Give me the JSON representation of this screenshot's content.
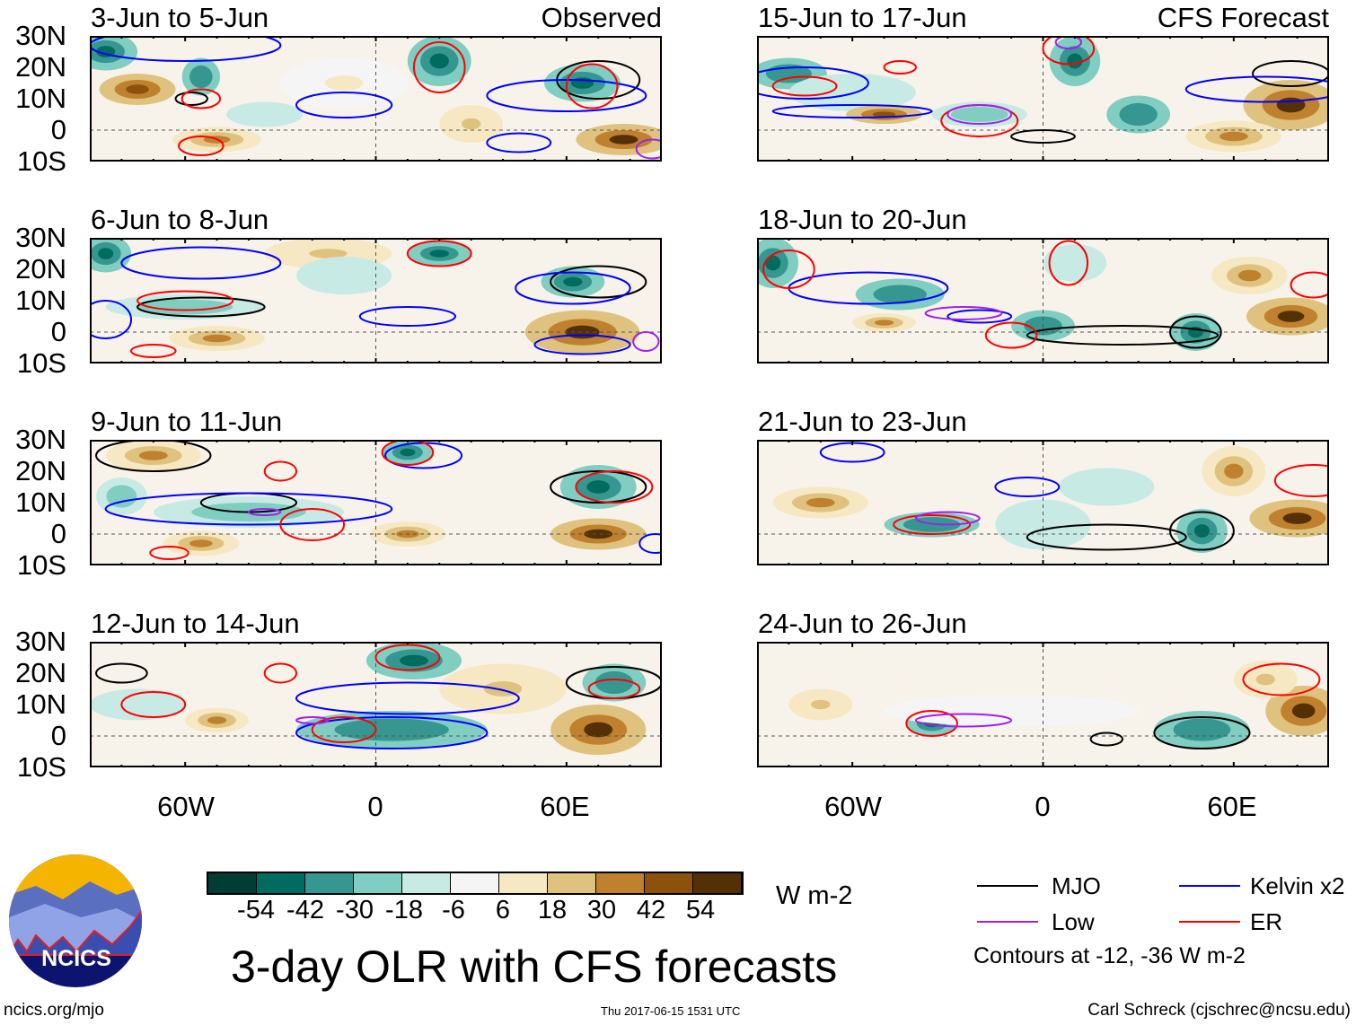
{
  "title": "3-day OLR with CFS forecasts",
  "units": "W m-2",
  "site": "ncics.org/mjo",
  "timestamp": "Thu 2017-06-15 1531 UTC",
  "author": "Carl Schreck (cjschrec@ncsu.edu)",
  "logo_text": "NCICS",
  "column_labels": {
    "observed": "Observed",
    "forecast": "CFS Forecast"
  },
  "lat_labels": [
    "30N",
    "20N",
    "10N",
    "0",
    "10S"
  ],
  "lon_labels": [
    "60W",
    "0",
    "60E"
  ],
  "colorbar": {
    "labels": [
      "-54",
      "-42",
      "-30",
      "-18",
      "-6",
      "6",
      "18",
      "30",
      "42",
      "54"
    ],
    "colors": [
      "#003d32",
      "#006b5f",
      "#35978f",
      "#80cdc1",
      "#c7eae5",
      "#f5f5f5",
      "#f6e8c3",
      "#dfc27d",
      "#bf812d",
      "#8c510a",
      "#543005"
    ]
  },
  "legend": {
    "items": [
      {
        "label": "MJO",
        "color": "#000000"
      },
      {
        "label": "Kelvin x2",
        "color": "#0000ff"
      },
      {
        "label": "Low",
        "color": "#a020f0"
      },
      {
        "label": "ER",
        "color": "#ff0000"
      }
    ],
    "note": "Contours at -12, -36 W m-2"
  },
  "panels": [
    {
      "title": "3-Jun to 5-Jun",
      "tag": "observed",
      "blobs": [
        [
          -85,
          25,
          10,
          6,
          -54
        ],
        [
          -75,
          13,
          12,
          5,
          42
        ],
        [
          -55,
          17,
          6,
          6,
          -42
        ],
        [
          -35,
          5,
          12,
          4,
          -18
        ],
        [
          20,
          22,
          10,
          8,
          -54
        ],
        [
          65,
          15,
          12,
          6,
          -54
        ],
        [
          78,
          -3,
          15,
          5,
          54
        ],
        [
          -50,
          -3,
          14,
          4,
          30
        ],
        [
          30,
          2,
          10,
          6,
          18
        ],
        [
          -10,
          15,
          20,
          8,
          6
        ]
      ],
      "contours": [
        [
          "MJO",
          -58,
          10,
          5,
          2
        ],
        [
          "MJO",
          70,
          16,
          13,
          6
        ],
        [
          "Kelvin",
          -60,
          27,
          30,
          5
        ],
        [
          "Kelvin",
          -10,
          8,
          15,
          4
        ],
        [
          "Kelvin",
          60,
          11,
          25,
          5
        ],
        [
          "Kelvin",
          45,
          -4,
          10,
          3
        ],
        [
          "ER",
          -55,
          10,
          6,
          3
        ],
        [
          "ER",
          20,
          20,
          8,
          8
        ],
        [
          "ER",
          68,
          14,
          8,
          7
        ],
        [
          "ER",
          -55,
          -5,
          7,
          3
        ],
        [
          "Low",
          87,
          -6,
          5,
          3
        ]
      ]
    },
    {
      "title": "15-Jun to 17-Jun",
      "tag": "forecast",
      "blobs": [
        [
          -80,
          18,
          12,
          5,
          -42
        ],
        [
          -60,
          12,
          20,
          6,
          -18
        ],
        [
          -20,
          5,
          15,
          4,
          -30
        ],
        [
          10,
          22,
          8,
          8,
          -54
        ],
        [
          30,
          5,
          10,
          6,
          -42
        ],
        [
          78,
          8,
          15,
          8,
          54
        ],
        [
          -50,
          5,
          12,
          3,
          42
        ],
        [
          60,
          -2,
          15,
          5,
          30
        ]
      ],
      "contours": [
        [
          "MJO",
          0,
          -2,
          10,
          2
        ],
        [
          "MJO",
          78,
          18,
          12,
          4
        ],
        [
          "Kelvin",
          -75,
          15,
          20,
          5
        ],
        [
          "Kelvin",
          70,
          13,
          25,
          4
        ],
        [
          "Kelvin",
          -60,
          6,
          25,
          2
        ],
        [
          "ER",
          -75,
          14,
          10,
          3
        ],
        [
          "ER",
          -20,
          3,
          12,
          5
        ],
        [
          "ER",
          8,
          26,
          8,
          5
        ],
        [
          "ER",
          -45,
          20,
          5,
          2
        ],
        [
          "Low",
          -20,
          5,
          10,
          3
        ],
        [
          "Low",
          8,
          28,
          4,
          2
        ]
      ]
    },
    {
      "title": "6-Jun to 8-Jun",
      "tag": "observed",
      "blobs": [
        [
          -85,
          25,
          8,
          6,
          -54
        ],
        [
          -60,
          8,
          25,
          4,
          -30
        ],
        [
          20,
          25,
          10,
          4,
          -54
        ],
        [
          62,
          16,
          10,
          5,
          -54
        ],
        [
          65,
          0,
          18,
          7,
          54
        ],
        [
          -15,
          25,
          20,
          5,
          18
        ],
        [
          -50,
          -2,
          15,
          4,
          30
        ],
        [
          -10,
          18,
          15,
          6,
          -18
        ]
      ],
      "contours": [
        [
          "MJO",
          -55,
          8,
          20,
          3
        ],
        [
          "MJO",
          70,
          16,
          15,
          5
        ],
        [
          "Kelvin",
          -55,
          22,
          25,
          5
        ],
        [
          "Kelvin",
          10,
          5,
          15,
          3
        ],
        [
          "Kelvin",
          65,
          -4,
          15,
          3
        ],
        [
          "Kelvin",
          62,
          14,
          18,
          5
        ],
        [
          "Kelvin",
          -85,
          4,
          8,
          6
        ],
        [
          "ER",
          -60,
          10,
          15,
          3
        ],
        [
          "ER",
          20,
          25,
          10,
          4
        ],
        [
          "ER",
          -70,
          -6,
          7,
          2
        ],
        [
          "Low",
          85,
          -3,
          4,
          3
        ]
      ]
    },
    {
      "title": "18-Jun to 20-Jun",
      "tag": "forecast",
      "blobs": [
        [
          -85,
          22,
          8,
          8,
          -54
        ],
        [
          -45,
          12,
          14,
          5,
          -42
        ],
        [
          0,
          2,
          10,
          5,
          -42
        ],
        [
          48,
          0,
          8,
          6,
          -54
        ],
        [
          78,
          5,
          14,
          6,
          54
        ],
        [
          65,
          18,
          12,
          6,
          30
        ],
        [
          -50,
          3,
          10,
          3,
          30
        ],
        [
          10,
          22,
          10,
          6,
          -18
        ]
      ],
      "contours": [
        [
          "MJO",
          25,
          -1,
          30,
          3
        ],
        [
          "MJO",
          48,
          0,
          8,
          5
        ],
        [
          "Kelvin",
          -55,
          14,
          25,
          5
        ],
        [
          "Kelvin",
          -20,
          5,
          10,
          2
        ],
        [
          "ER",
          -80,
          20,
          8,
          6
        ],
        [
          "ER",
          -10,
          -1,
          8,
          4
        ],
        [
          "ER",
          8,
          22,
          6,
          7
        ],
        [
          "ER",
          85,
          15,
          7,
          4
        ],
        [
          "Low",
          -25,
          6,
          12,
          2
        ]
      ]
    },
    {
      "title": "9-Jun to 11-Jun",
      "tag": "observed",
      "blobs": [
        [
          -70,
          25,
          15,
          5,
          30
        ],
        [
          -40,
          7,
          30,
          5,
          -30
        ],
        [
          10,
          26,
          8,
          4,
          -54
        ],
        [
          70,
          15,
          12,
          7,
          -54
        ],
        [
          70,
          0,
          15,
          5,
          54
        ],
        [
          10,
          0,
          12,
          4,
          30
        ],
        [
          -55,
          -3,
          12,
          4,
          30
        ],
        [
          -80,
          12,
          8,
          6,
          -30
        ]
      ],
      "contours": [
        [
          "MJO",
          -70,
          25,
          18,
          5
        ],
        [
          "MJO",
          -40,
          10,
          15,
          3
        ],
        [
          "MJO",
          70,
          15,
          15,
          5
        ],
        [
          "Kelvin",
          -40,
          8,
          45,
          5
        ],
        [
          "Kelvin",
          15,
          25,
          12,
          4
        ],
        [
          "Kelvin",
          88,
          -3,
          5,
          3
        ],
        [
          "ER",
          -20,
          3,
          10,
          5
        ],
        [
          "ER",
          10,
          26,
          8,
          4
        ],
        [
          "ER",
          -30,
          20,
          5,
          3
        ],
        [
          "ER",
          -65,
          -6,
          6,
          2
        ],
        [
          "ER",
          75,
          15,
          12,
          5
        ],
        [
          "Low",
          -35,
          7,
          5,
          1
        ]
      ]
    },
    {
      "title": "21-Jun to 23-Jun",
      "tag": "forecast",
      "blobs": [
        [
          -35,
          3,
          15,
          4,
          -42
        ],
        [
          0,
          3,
          15,
          8,
          -18
        ],
        [
          50,
          1,
          8,
          7,
          -54
        ],
        [
          80,
          5,
          15,
          6,
          54
        ],
        [
          60,
          20,
          10,
          8,
          30
        ],
        [
          -70,
          10,
          15,
          5,
          30
        ],
        [
          20,
          15,
          15,
          6,
          -18
        ]
      ],
      "contours": [
        [
          "MJO",
          20,
          -1,
          25,
          4
        ],
        [
          "MJO",
          50,
          1,
          10,
          6
        ],
        [
          "Kelvin",
          -60,
          26,
          10,
          3
        ],
        [
          "Kelvin",
          -5,
          15,
          10,
          3
        ],
        [
          "ER",
          -35,
          3,
          12,
          3
        ],
        [
          "ER",
          85,
          17,
          12,
          5
        ],
        [
          "Low",
          -30,
          5,
          10,
          2
        ]
      ]
    },
    {
      "title": "12-Jun to 14-Jun",
      "tag": "observed",
      "blobs": [
        [
          12,
          24,
          15,
          6,
          -54
        ],
        [
          5,
          2,
          30,
          6,
          -42
        ],
        [
          70,
          2,
          15,
          8,
          54
        ],
        [
          75,
          17,
          10,
          6,
          -42
        ],
        [
          -75,
          10,
          15,
          5,
          -18
        ],
        [
          -50,
          5,
          10,
          4,
          30
        ],
        [
          40,
          15,
          20,
          8,
          18
        ]
      ],
      "contours": [
        [
          "MJO",
          -80,
          20,
          8,
          3
        ],
        [
          "MJO",
          75,
          17,
          15,
          5
        ],
        [
          "Kelvin",
          10,
          12,
          35,
          5
        ],
        [
          "Kelvin",
          5,
          1,
          30,
          5
        ],
        [
          "ER",
          10,
          25,
          10,
          4
        ],
        [
          "ER",
          -10,
          2,
          10,
          4
        ],
        [
          "ER",
          -30,
          20,
          5,
          3
        ],
        [
          "ER",
          -70,
          10,
          10,
          4
        ],
        [
          "ER",
          75,
          15,
          8,
          3
        ],
        [
          "Low",
          -20,
          5,
          5,
          1
        ]
      ]
    },
    {
      "title": "24-Jun to 26-Jun",
      "tag": "forecast",
      "blobs": [
        [
          -35,
          4,
          8,
          4,
          -54
        ],
        [
          -10,
          8,
          40,
          5,
          -6
        ],
        [
          50,
          2,
          15,
          6,
          -42
        ],
        [
          82,
          8,
          12,
          8,
          54
        ],
        [
          70,
          18,
          10,
          6,
          18
        ],
        [
          -70,
          10,
          10,
          5,
          18
        ]
      ],
      "contours": [
        [
          "MJO",
          50,
          1,
          15,
          5
        ],
        [
          "MJO",
          20,
          -1,
          5,
          2
        ],
        [
          "ER",
          -35,
          4,
          8,
          4
        ],
        [
          "ER",
          75,
          18,
          12,
          5
        ],
        [
          "Low",
          -25,
          5,
          15,
          2
        ]
      ]
    }
  ]
}
